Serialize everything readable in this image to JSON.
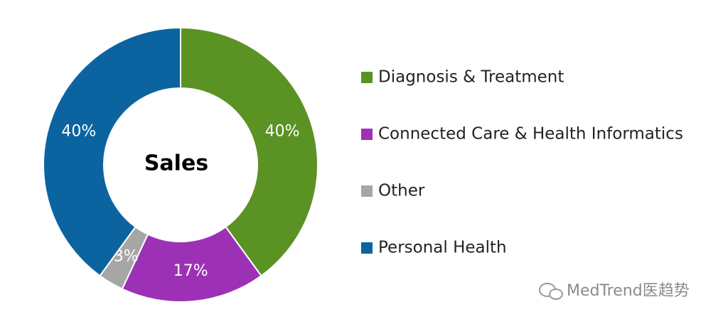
{
  "chart_data": {
    "type": "donut",
    "title": "Sales",
    "categories": [
      "Diagnosis & Treatment",
      "Connected Care & Health Informatics",
      "Other",
      "Personal Health"
    ],
    "values": [
      40,
      17,
      3,
      40
    ],
    "value_labels": [
      "40%",
      "17%",
      "3%",
      "40%"
    ],
    "colors": [
      "#5b9224",
      "#9c31b6",
      "#a6a6a6",
      "#0b64a0"
    ],
    "legend": "right"
  },
  "watermark": "MedTrend医趋势"
}
